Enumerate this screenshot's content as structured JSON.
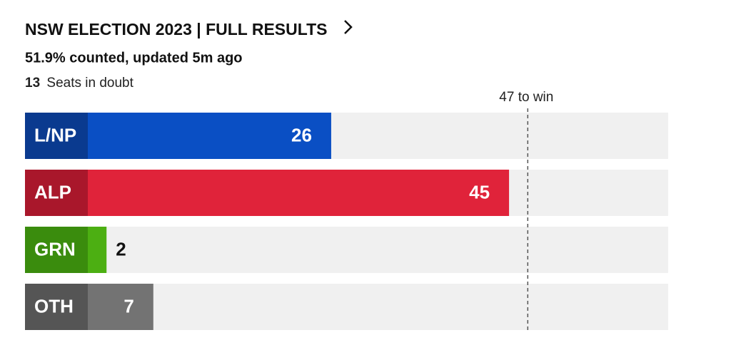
{
  "chart_data": {
    "type": "bar",
    "title": "NSW ELECTION 2023 | FULL RESULTS",
    "subtitle": "51.9% counted, updated 5m ago",
    "seats_in_doubt": {
      "value": 13,
      "label": "Seats in doubt"
    },
    "threshold": {
      "value": 47,
      "label": "47 to win"
    },
    "categories": [
      "L/NP",
      "ALP",
      "GRN",
      "OTH"
    ],
    "values": [
      26,
      45,
      2,
      7
    ],
    "colors": [
      "#0a4fc4",
      "#e0233a",
      "#4caf12",
      "#737373"
    ],
    "label_box_colors": [
      "#0a3a8f",
      "#a9172b",
      "#3a8c0d",
      "#555555"
    ],
    "track_color": "#f0f0f0",
    "xlim": [
      0,
      62
    ]
  }
}
